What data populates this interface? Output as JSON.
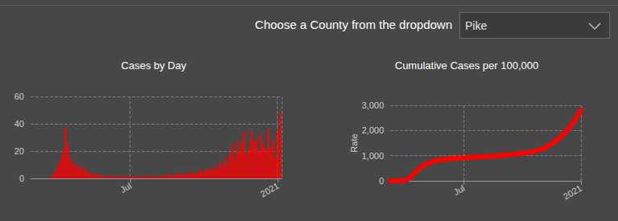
{
  "header": {
    "prompt": "Choose a County from the dropdown",
    "selected": "Pike"
  },
  "chart_data": [
    {
      "type": "bar",
      "title": "Cases by Day",
      "color": "#ff0000",
      "grid": true,
      "categories": [
        null,
        null,
        null,
        null,
        null,
        null,
        null,
        null,
        null,
        null,
        null,
        null,
        null,
        null,
        null,
        null,
        null,
        null,
        null,
        null,
        null,
        null,
        null,
        null,
        null,
        null,
        null,
        null,
        null,
        null,
        null,
        null,
        null,
        null,
        null,
        null,
        null,
        null,
        null,
        null,
        null,
        "Jul",
        null,
        null,
        null,
        null,
        null,
        null,
        null,
        null,
        null,
        null,
        null,
        null,
        null,
        null,
        null,
        null,
        null,
        null,
        null,
        null,
        null,
        null,
        null,
        null,
        null,
        null,
        null,
        null,
        null,
        null,
        null,
        null,
        null,
        null,
        null,
        null,
        null,
        null,
        null,
        null,
        null,
        null,
        null,
        null,
        null,
        null,
        null,
        null,
        null,
        null,
        null,
        null,
        null,
        null,
        null,
        null,
        null,
        null,
        null,
        null,
        "2021",
        null
      ],
      "values": [
        0,
        0,
        0,
        0,
        0,
        0,
        0,
        0,
        1,
        3,
        6,
        10,
        14,
        20,
        37,
        25,
        15,
        10,
        12,
        8,
        9,
        6,
        8,
        5,
        4,
        3,
        4,
        2,
        3,
        2,
        1,
        2,
        1,
        2,
        1,
        1,
        2,
        1,
        1,
        2,
        1,
        1,
        2,
        1,
        1,
        1,
        2,
        1,
        2,
        1,
        2,
        1,
        1,
        2,
        1,
        2,
        3,
        2,
        3,
        2,
        3,
        4,
        3,
        2,
        4,
        3,
        5,
        4,
        3,
        5,
        6,
        4,
        7,
        5,
        8,
        6,
        9,
        7,
        12,
        9,
        15,
        10,
        18,
        24,
        14,
        28,
        20,
        26,
        34,
        18,
        22,
        35,
        27,
        30,
        20,
        33,
        25,
        21,
        36,
        22,
        28,
        15,
        35,
        48
      ],
      "ylim": [
        0,
        60
      ],
      "yticks": [
        0,
        20,
        40,
        60
      ]
    },
    {
      "type": "line",
      "title": "Cumulative Cases per 100,000",
      "ylabel": "Rate",
      "color": "#ff0000",
      "grid": true,
      "marker": "none",
      "categories": [
        null,
        null,
        null,
        null,
        null,
        null,
        null,
        null,
        null,
        null,
        null,
        null,
        null,
        null,
        null,
        null,
        null,
        "Jul",
        null,
        null,
        null,
        null,
        null,
        null,
        null,
        null,
        null,
        null,
        null,
        null,
        null,
        null,
        null,
        null,
        null,
        null,
        null,
        null,
        null,
        null,
        null,
        null,
        null,
        null,
        "2021"
      ],
      "values": [
        0,
        0,
        0,
        10,
        60,
        180,
        380,
        520,
        620,
        700,
        760,
        810,
        840,
        860,
        875,
        890,
        900,
        910,
        920,
        930,
        940,
        950,
        960,
        970,
        985,
        1000,
        1015,
        1030,
        1045,
        1065,
        1085,
        1105,
        1130,
        1160,
        1200,
        1260,
        1340,
        1440,
        1560,
        1690,
        1850,
        2030,
        2250,
        2500,
        2800
      ],
      "ylim": [
        0,
        3000
      ],
      "yticks": [
        0,
        {
          "value": 1000,
          "label": "1,000"
        },
        {
          "value": 2000,
          "label": "2,000"
        },
        {
          "value": 3000,
          "label": "3,000"
        }
      ]
    }
  ]
}
